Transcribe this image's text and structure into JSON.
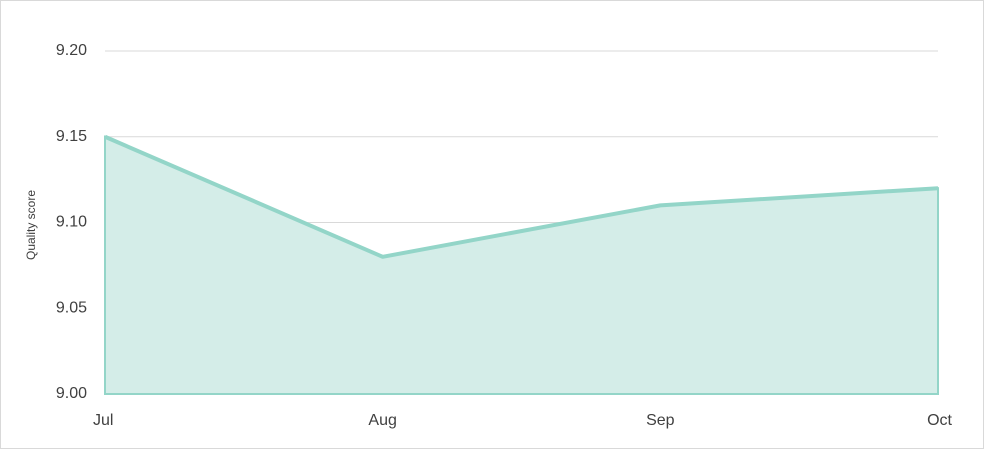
{
  "chart_data": {
    "type": "area",
    "y_label": "Quality score",
    "categories": [
      "Jul",
      "Aug",
      "Sep",
      "Oct"
    ],
    "values": [
      9.15,
      9.08,
      9.11,
      9.12
    ],
    "color": "#93d5c8",
    "fill": "#d4ede8",
    "ylim": [
      9.0,
      9.2
    ],
    "yticks": [
      {
        "value": 9.0,
        "label": "9.00"
      },
      9.05,
      {
        "value": 9.1,
        "label": "9.10"
      },
      9.15,
      {
        "value": 9.2,
        "label": "9.20"
      }
    ],
    "grid": true
  }
}
